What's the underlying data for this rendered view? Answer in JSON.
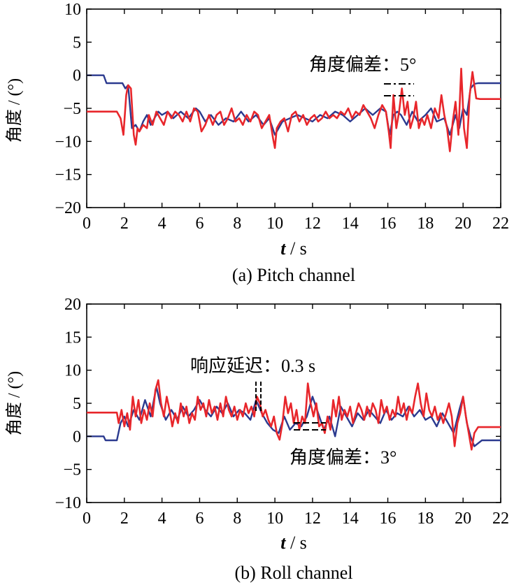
{
  "chart_data": [
    {
      "type": "line",
      "caption": "(a) Pitch channel",
      "xlabel_italic": "t",
      "xlabel_unit": " / s",
      "ylabel": "角度 / (°)",
      "xlim": [
        0,
        22
      ],
      "ylim": [
        -20,
        10
      ],
      "xticks": [
        0,
        2,
        4,
        6,
        8,
        10,
        12,
        14,
        16,
        18,
        20,
        22
      ],
      "yticks": [
        10,
        5,
        0,
        -5,
        -10,
        -15,
        -20
      ],
      "annotation": "角度偏差：5°",
      "colors": {
        "blue": "#2b3a8f",
        "red": "#e8262b"
      },
      "series": [
        {
          "name": "blue",
          "color": "#2b3a8f",
          "x": [
            0,
            0.9,
            1.05,
            1.5,
            1.9,
            2.05,
            2.2,
            2.4,
            2.6,
            2.8,
            3.0,
            3.2,
            3.4,
            3.6,
            3.8,
            4.0,
            4.3,
            4.6,
            5.0,
            5.4,
            5.8,
            6.0,
            6.3,
            6.6,
            7.0,
            7.4,
            7.8,
            8.2,
            8.6,
            9.0,
            9.4,
            9.7,
            10.0,
            10.4,
            10.8,
            11.2,
            11.6,
            12.0,
            12.4,
            12.8,
            13.2,
            13.6,
            14.0,
            14.4,
            14.8,
            15.2,
            15.6,
            15.9,
            16.1,
            16.3,
            16.5,
            16.7,
            17.0,
            17.3,
            17.6,
            18.0,
            18.3,
            18.6,
            19.0,
            19.3,
            19.6,
            19.8,
            20.0,
            20.2,
            20.4,
            20.6,
            20.8,
            21.0,
            22.0
          ],
          "y": [
            0,
            0,
            -1.2,
            -1.2,
            -1.2,
            -2,
            -1.5,
            -8,
            -7.5,
            -8.5,
            -7,
            -6,
            -7.5,
            -6.5,
            -5.5,
            -6,
            -5.5,
            -6.5,
            -5.5,
            -6.5,
            -5,
            -5.5,
            -7,
            -6,
            -7.5,
            -6.5,
            -7,
            -5.5,
            -7,
            -6,
            -7.5,
            -6.5,
            -9,
            -7,
            -6.5,
            -6,
            -6.5,
            -7,
            -6,
            -6.5,
            -5.5,
            -6,
            -7,
            -6,
            -5,
            -6,
            -5,
            -5.5,
            -9,
            -6,
            -5.5,
            -6,
            -7.5,
            -5.5,
            -7,
            -6,
            -5,
            -7,
            -6.5,
            -9,
            -6,
            -8,
            -5,
            -6,
            -2,
            -1.3,
            -1.2,
            -1.2,
            -1.2
          ]
        },
        {
          "name": "red",
          "color": "#e8262b",
          "x": [
            0,
            1.0,
            1.6,
            1.8,
            1.95,
            2.1,
            2.2,
            2.35,
            2.5,
            2.6,
            2.7,
            2.8,
            3.0,
            3.2,
            3.3,
            3.5,
            3.7,
            3.9,
            4.1,
            4.3,
            4.5,
            4.7,
            4.9,
            5.1,
            5.3,
            5.5,
            5.7,
            5.9,
            6.1,
            6.3,
            6.5,
            6.7,
            6.9,
            7.1,
            7.3,
            7.5,
            7.7,
            7.9,
            8.1,
            8.3,
            8.5,
            8.7,
            8.9,
            9.1,
            9.3,
            9.5,
            9.7,
            9.9,
            10.0,
            10.1,
            10.3,
            10.5,
            10.7,
            10.9,
            11.1,
            11.3,
            11.5,
            11.7,
            11.9,
            12.1,
            12.3,
            12.5,
            12.7,
            12.9,
            13.1,
            13.3,
            13.5,
            13.7,
            13.9,
            14.1,
            14.3,
            14.5,
            14.7,
            14.9,
            15.1,
            15.3,
            15.5,
            15.7,
            15.9,
            16.05,
            16.15,
            16.3,
            16.45,
            16.6,
            16.75,
            16.9,
            17.05,
            17.2,
            17.35,
            17.5,
            17.65,
            17.8,
            17.95,
            18.1,
            18.3,
            18.5,
            18.7,
            18.85,
            19.0,
            19.15,
            19.3,
            19.45,
            19.6,
            19.75,
            19.9,
            20.05,
            20.2,
            20.35,
            20.5,
            20.7,
            20.9,
            21.2,
            22.0
          ],
          "y": [
            -5.5,
            -5.5,
            -5.5,
            -6.5,
            -9,
            -3,
            -1.5,
            -2,
            -9,
            -10.5,
            -8,
            -8.5,
            -7.5,
            -8,
            -6,
            -7.5,
            -5.5,
            -6.5,
            -7.5,
            -5.5,
            -6.5,
            -5.5,
            -6,
            -7,
            -5.5,
            -7,
            -5,
            -5.5,
            -8.5,
            -7.5,
            -6,
            -7.5,
            -6,
            -5.5,
            -7.5,
            -6.5,
            -5,
            -7,
            -6.5,
            -7.5,
            -6,
            -7,
            -5.5,
            -6,
            -8,
            -7,
            -6,
            -9.5,
            -11,
            -8,
            -7,
            -6.5,
            -8.5,
            -6,
            -5.5,
            -7,
            -6,
            -7.5,
            -6.5,
            -6,
            -7,
            -6.5,
            -5.5,
            -6.5,
            -6,
            -6.5,
            -5.5,
            -6,
            -5,
            -6.5,
            -5.5,
            -6,
            -4.5,
            -5.5,
            -6.5,
            -8,
            -6,
            -4.5,
            -5.5,
            -8.5,
            -11,
            -3,
            -8,
            -5.5,
            -2,
            -6,
            -4,
            -8,
            -6.5,
            -4,
            -8,
            -6.5,
            -7.5,
            -6,
            -8,
            -5,
            -6.5,
            -3,
            -6,
            -8,
            -11.5,
            -7,
            -4,
            -9,
            1,
            -8,
            -11,
            -3,
            0.5,
            -3.5,
            -3.6,
            -3.6,
            -3.6
          ]
        }
      ]
    },
    {
      "type": "line",
      "caption": "(b) Roll channel",
      "xlabel_italic": "t",
      "xlabel_unit": " / s",
      "ylabel": "角度 / (°)",
      "xlim": [
        0,
        22
      ],
      "ylim": [
        -10,
        20
      ],
      "xticks": [
        0,
        2,
        4,
        6,
        8,
        10,
        12,
        14,
        16,
        18,
        20,
        22
      ],
      "yticks": [
        20,
        15,
        10,
        5,
        0,
        -5,
        -10
      ],
      "annotation_delay": "响应延迟：0.3 s",
      "annotation_dev": "角度偏差：3°",
      "colors": {
        "blue": "#2b3a8f",
        "red": "#e8262b"
      },
      "series": [
        {
          "name": "blue",
          "color": "#2b3a8f",
          "x": [
            0,
            0.9,
            1.0,
            1.4,
            1.6,
            1.8,
            2.0,
            2.2,
            2.5,
            2.8,
            3.1,
            3.4,
            3.7,
            3.9,
            4.2,
            4.5,
            4.8,
            5.1,
            5.4,
            5.7,
            6.0,
            6.3,
            6.6,
            6.9,
            7.2,
            7.5,
            7.8,
            8.1,
            8.4,
            8.7,
            9.0,
            9.3,
            9.6,
            9.9,
            10.2,
            10.5,
            10.8,
            11.1,
            11.4,
            11.7,
            12.0,
            12.3,
            12.6,
            12.9,
            13.2,
            13.5,
            13.8,
            14.1,
            14.4,
            14.7,
            15.0,
            15.3,
            15.6,
            15.9,
            16.2,
            16.5,
            16.8,
            17.1,
            17.4,
            17.7,
            18.0,
            18.3,
            18.6,
            18.9,
            19.2,
            19.5,
            19.8,
            20.0,
            20.2,
            20.4,
            20.6,
            21.0,
            22.0
          ],
          "y": [
            0,
            0,
            -0.6,
            -0.6,
            -0.6,
            2,
            3,
            1.5,
            4,
            2.5,
            5.5,
            3,
            7.5,
            5,
            2.5,
            4,
            2.5,
            4.5,
            3,
            4,
            5.5,
            4,
            3,
            4.5,
            3.5,
            5,
            3,
            4,
            3.5,
            2.5,
            5.5,
            3.5,
            2,
            1,
            0.5,
            3,
            1,
            2,
            1.5,
            3,
            6,
            3.5,
            1,
            3,
            0,
            4.5,
            3,
            1.5,
            3.5,
            2.5,
            4,
            3,
            2,
            4,
            2.5,
            3.5,
            3,
            4.5,
            3,
            4,
            2.5,
            3,
            1.5,
            3.5,
            2,
            0.5,
            4,
            6,
            2,
            0,
            -1.5,
            -0.6,
            -0.6
          ]
        },
        {
          "name": "red",
          "color": "#e8262b",
          "x": [
            0,
            1.0,
            1.6,
            1.7,
            1.85,
            2.0,
            2.15,
            2.3,
            2.45,
            2.6,
            2.75,
            2.9,
            3.05,
            3.2,
            3.35,
            3.5,
            3.65,
            3.8,
            3.95,
            4.1,
            4.25,
            4.4,
            4.55,
            4.7,
            4.85,
            5.0,
            5.15,
            5.3,
            5.45,
            5.6,
            5.75,
            5.9,
            6.05,
            6.2,
            6.35,
            6.5,
            6.65,
            6.8,
            6.95,
            7.1,
            7.25,
            7.4,
            7.55,
            7.7,
            7.85,
            8.0,
            8.15,
            8.3,
            8.45,
            8.6,
            8.75,
            8.9,
            9.05,
            9.2,
            9.35,
            9.5,
            9.65,
            9.8,
            9.95,
            10.1,
            10.25,
            10.4,
            10.55,
            10.7,
            10.85,
            11.0,
            11.15,
            11.3,
            11.45,
            11.6,
            11.75,
            11.9,
            12.05,
            12.2,
            12.35,
            12.5,
            12.65,
            12.8,
            12.95,
            13.1,
            13.25,
            13.4,
            13.55,
            13.7,
            13.85,
            14.0,
            14.15,
            14.3,
            14.45,
            14.6,
            14.75,
            14.9,
            15.05,
            15.2,
            15.35,
            15.5,
            15.65,
            15.8,
            15.95,
            16.1,
            16.25,
            16.4,
            16.55,
            16.7,
            16.85,
            17.0,
            17.15,
            17.3,
            17.45,
            17.6,
            17.75,
            17.9,
            18.05,
            18.2,
            18.35,
            18.5,
            18.65,
            18.8,
            18.95,
            19.1,
            19.25,
            19.4,
            19.55,
            19.7,
            19.85,
            20.0,
            20.15,
            20.3,
            20.45,
            20.6,
            20.8,
            21.0,
            22.0
          ],
          "y": [
            3.6,
            3.6,
            3.6,
            2,
            4,
            1.5,
            3.5,
            1,
            6,
            3,
            5.5,
            2,
            4,
            2.5,
            5,
            3,
            7,
            8.5,
            5,
            3,
            6,
            4,
            1.5,
            3.5,
            2,
            5,
            3,
            4.5,
            2,
            3.5,
            2.5,
            6,
            4,
            5,
            3,
            5.5,
            3.5,
            4.5,
            2.5,
            5,
            3,
            6,
            4,
            3,
            4.5,
            2.5,
            4,
            3,
            5,
            3.5,
            4.5,
            3,
            6,
            5,
            3,
            4,
            2.5,
            1.5,
            3,
            0.5,
            -0.5,
            2,
            6,
            3.5,
            5,
            2,
            4,
            1,
            3,
            2,
            8,
            5,
            3,
            5,
            1.5,
            2,
            0.5,
            3,
            1,
            5.5,
            3,
            6,
            2.5,
            4,
            3,
            4.5,
            2,
            3.5,
            5,
            4,
            2.5,
            4.5,
            3,
            5,
            4,
            2,
            5.5,
            3.5,
            4.5,
            2.5,
            4,
            3,
            6,
            3.5,
            5,
            2.5,
            4.5,
            3.5,
            6,
            8,
            5,
            3,
            6.5,
            4,
            3,
            4.5,
            2.5,
            3.5,
            2,
            3.5,
            5,
            3,
            -1.5,
            2,
            3.5,
            6,
            3,
            0.5,
            -2,
            0.5,
            1.4,
            1.4,
            1.4
          ]
        }
      ]
    }
  ]
}
